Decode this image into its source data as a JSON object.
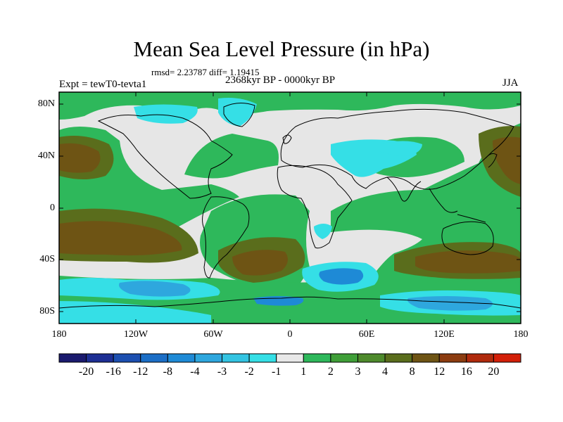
{
  "header": {
    "title": "Mean Sea Level Pressure (in hPa)",
    "stats": "rmsd= 2.23787 diff= 1.19415",
    "period": "2368kyr BP - 0000kyr BP",
    "experiment": "Expt = tewT0-tevta1",
    "season": "JJA"
  },
  "axes": {
    "y_ticks": [
      "80N",
      "40N",
      "0",
      "40S",
      "80S"
    ],
    "x_ticks": [
      "180",
      "120W",
      "60W",
      "0",
      "60E",
      "120E",
      "180"
    ]
  },
  "colorbar": {
    "labels": [
      "-20",
      "-16",
      "-12",
      "-8",
      "-4",
      "-3",
      "-2",
      "-1",
      "1",
      "2",
      "3",
      "4",
      "8",
      "12",
      "16",
      "20"
    ],
    "colors": [
      "#1a1a6e",
      "#1d2f94",
      "#1c4fb0",
      "#1b6ec6",
      "#1e8ad6",
      "#2ea7de",
      "#33c4e2",
      "#35dfe6",
      "#e8e8e8",
      "#2eb85b",
      "#3f9f38",
      "#4e8a2c",
      "#5a6d1c",
      "#6e5414",
      "#8c3c10",
      "#b02a0c",
      "#d31f08"
    ]
  },
  "map": {
    "neutral_color": "#e6e6e6",
    "coast_color": "#000000"
  }
}
